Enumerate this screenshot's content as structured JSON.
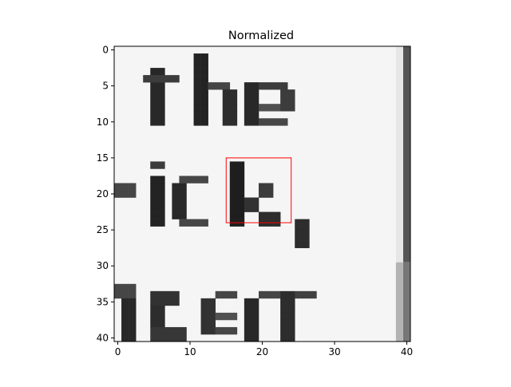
{
  "chart_data": {
    "type": "heatmap",
    "title": "Normalized",
    "xlabel": "",
    "ylabel": "",
    "grid": false,
    "colormap": "gray",
    "colors": {
      "highlight_box": "#ff0000",
      "axes": "#000000"
    },
    "grid_size": [
      41,
      41
    ],
    "xlim": [
      -0.5,
      40.5
    ],
    "ylim": [
      40.5,
      -0.5
    ],
    "x_ticks": [
      0,
      10,
      20,
      30,
      40
    ],
    "y_ticks": [
      0,
      5,
      10,
      15,
      20,
      25,
      30,
      35,
      40
    ],
    "x_tick_labels": [
      "0",
      "10",
      "20",
      "30",
      "40"
    ],
    "y_tick_labels": [
      "0",
      "5",
      "10",
      "15",
      "20",
      "25",
      "30",
      "35",
      "40"
    ],
    "highlight_box": {
      "x0": 15,
      "y0": 15,
      "x1": 24,
      "y1": 24
    },
    "depicted_text_fragments": [
      "the",
      "ick,",
      "ger"
    ]
  }
}
